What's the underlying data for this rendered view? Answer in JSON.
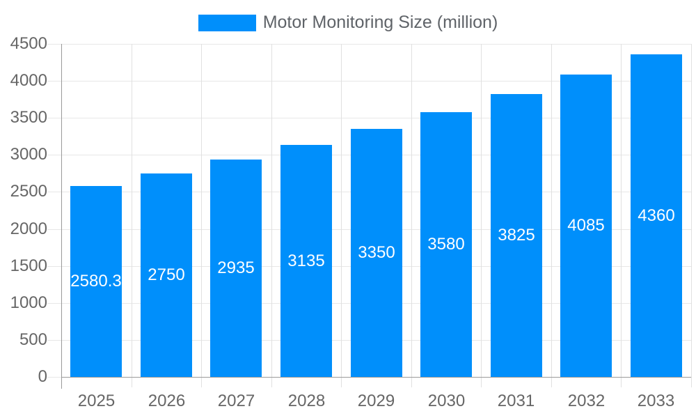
{
  "legend": {
    "label": "Motor Monitoring Size (million)",
    "swatch_color": "#008FFB"
  },
  "chart_data": {
    "type": "bar",
    "title": "Motor Monitoring Size (million)",
    "categories": [
      "2025",
      "2026",
      "2027",
      "2028",
      "2029",
      "2030",
      "2031",
      "2032",
      "2033"
    ],
    "series": [
      {
        "name": "Motor Monitoring Size (million)",
        "values": [
          2580.3,
          2750,
          2935,
          3135,
          3350,
          3580,
          3825,
          4085,
          4360
        ]
      }
    ],
    "value_labels": [
      "2580.3",
      "2750",
      "2935",
      "3135",
      "3350",
      "3580",
      "3825",
      "4085",
      "4360"
    ],
    "xlabel": "",
    "ylabel": "",
    "ylim": [
      0,
      4500
    ],
    "ytick_step": 500,
    "ytick_labels": [
      "0",
      "500",
      "1000",
      "1500",
      "2000",
      "2500",
      "3000",
      "3500",
      "4000",
      "4500"
    ],
    "grid": true,
    "legend_position": "top",
    "data_labels": "inside-center",
    "colors": {
      "bar": "#008FFB",
      "data_label": "#ffffff",
      "axis_label": "#666666",
      "grid_line": "#e7e7e7",
      "axis_line": "#9a9a9a",
      "background": "#ffffff"
    }
  }
}
